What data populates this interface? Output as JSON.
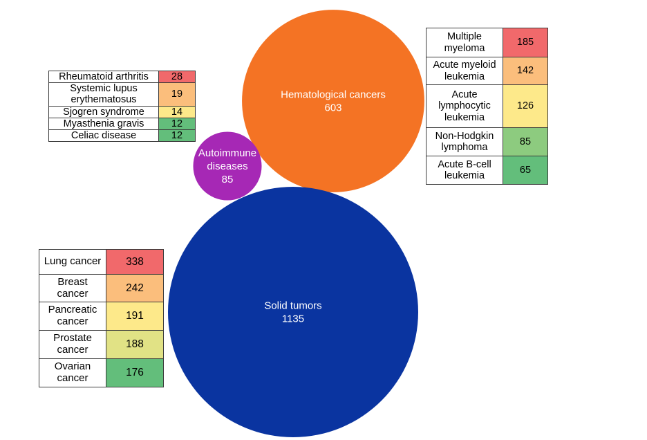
{
  "colors": {
    "hematological": "#f47324",
    "autoimmune": "#a628b5",
    "solid": "#0a34a0",
    "rank_scale": [
      "#f1696b",
      "#fbbe7c",
      "#fde98a",
      "#e1e285",
      "#8dcb7f",
      "#63be7b"
    ]
  },
  "chart_data": {
    "type": "bubble",
    "bubbles": [
      {
        "id": "hematological",
        "label": "Hematological cancers",
        "value": 603
      },
      {
        "id": "autoimmune",
        "label_lines": [
          "Autoimmune",
          "diseases"
        ],
        "value": 85
      },
      {
        "id": "solid",
        "label": "Solid tumors",
        "value": 1135
      }
    ],
    "breakdowns": {
      "autoimmune": [
        {
          "label": "Rheumatoid arthritis",
          "value": 28
        },
        {
          "label": "Systemic lupus erythematosus",
          "value": 19
        },
        {
          "label": "Sjogren syndrome",
          "value": 14
        },
        {
          "label": "Myasthenia gravis",
          "value": 12
        },
        {
          "label": "Celiac disease",
          "value": 12
        }
      ],
      "hematological": [
        {
          "label": "Multiple myeloma",
          "value": 185
        },
        {
          "label": "Acute myeloid leukemia",
          "value": 142
        },
        {
          "label": "Acute lymphocytic leukemia",
          "value": 126
        },
        {
          "label": "Non-Hodgkin lymphoma",
          "value": 85
        },
        {
          "label": "Acute B-cell leukemia",
          "value": 65
        }
      ],
      "solid": [
        {
          "label": "Lung cancer",
          "value": 338
        },
        {
          "label": "Breast cancer",
          "value": 242
        },
        {
          "label": "Pancreatic cancer",
          "value": 191
        },
        {
          "label": "Prostate cancer",
          "value": 188
        },
        {
          "label": "Ovarian cancer",
          "value": 176
        }
      ]
    }
  }
}
